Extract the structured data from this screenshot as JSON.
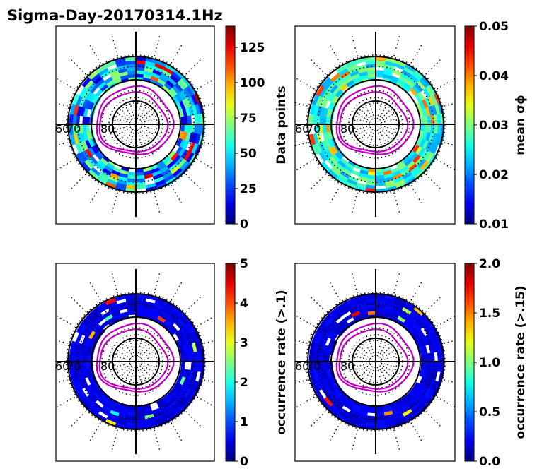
{
  "title": "Sigma-Day-20170314.1Hz",
  "chart_data": [
    {
      "type": "heatmap",
      "projection": "polar",
      "lat_labels": [
        "60",
        "70",
        "80"
      ],
      "colormap": "jet",
      "colorbar": {
        "label": "Data points",
        "range": [
          0,
          140
        ],
        "ticks": [
          "0",
          "25",
          "50",
          "75",
          "100",
          "125"
        ],
        "tick_values": [
          0,
          25,
          50,
          75,
          100,
          125
        ]
      },
      "ring_colors": {
        "inner_lat": 0.25,
        "outer_lat": 0.35
      }
    },
    {
      "type": "heatmap",
      "projection": "polar",
      "lat_labels": [
        "60",
        "70",
        "80"
      ],
      "colormap": "jet",
      "colorbar": {
        "label": "mean σϕ",
        "range": [
          0.01,
          0.05
        ],
        "ticks": [
          "0.01",
          "0.02",
          "0.03",
          "0.04",
          "0.05"
        ],
        "tick_values": [
          0.01,
          0.02,
          0.03,
          0.04,
          0.05
        ]
      },
      "ring_colors": {
        "inner_lat": 0.4,
        "outer_lat": 0.5
      }
    },
    {
      "type": "heatmap",
      "projection": "polar",
      "lat_labels": [
        "60",
        "70",
        "80"
      ],
      "colormap": "jet",
      "colorbar": {
        "label": "occurrence rate (>.1)",
        "range": [
          0,
          5
        ],
        "ticks": [
          "0",
          "1",
          "2",
          "3",
          "4",
          "5"
        ],
        "tick_values": [
          0,
          1,
          2,
          3,
          4,
          5
        ]
      },
      "ring_colors": {
        "inner_lat": 0.05,
        "outer_lat": 0.07
      }
    },
    {
      "type": "heatmap",
      "projection": "polar",
      "lat_labels": [
        "60",
        "70",
        "80"
      ],
      "colormap": "jet",
      "colorbar": {
        "label": "occurrence rate (>.15)",
        "range": [
          0,
          2
        ],
        "ticks": [
          "0.0",
          "0.5",
          "1.0",
          "1.5",
          "2.0"
        ],
        "tick_values": [
          0,
          0.5,
          1.0,
          1.5,
          2.0
        ]
      },
      "ring_colors": {
        "inner_lat": 0.04,
        "outer_lat": 0.06
      }
    }
  ],
  "colors": {
    "magenta": "#c000c0",
    "frame": "#000000"
  }
}
